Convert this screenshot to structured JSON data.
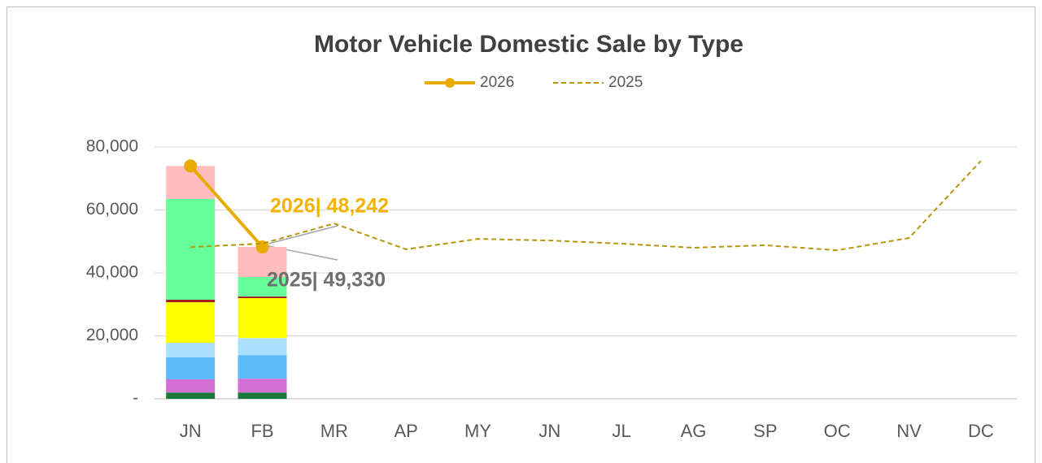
{
  "chart_data": {
    "type": "bar",
    "title": "Motor Vehicle Domestic Sale by Type",
    "categories": [
      "JN",
      "FB",
      "MR",
      "AP",
      "MY",
      "JN",
      "JL",
      "AG",
      "SP",
      "OC",
      "NV",
      "DC"
    ],
    "stack_series": [
      {
        "color": "#1a7a3c",
        "values": [
          2000,
          2000,
          null,
          null,
          null,
          null,
          null,
          null,
          null,
          null,
          null,
          null
        ]
      },
      {
        "color": "#d46fd4",
        "values": [
          4200,
          4400,
          null,
          null,
          null,
          null,
          null,
          null,
          null,
          null,
          null,
          null
        ]
      },
      {
        "color": "#5cbcf7",
        "values": [
          7000,
          7500,
          null,
          null,
          null,
          null,
          null,
          null,
          null,
          null,
          null,
          null
        ]
      },
      {
        "color": "#acdffb",
        "values": [
          4600,
          5400,
          null,
          null,
          null,
          null,
          null,
          null,
          null,
          null,
          null,
          null
        ]
      },
      {
        "color": "#ffff00",
        "values": [
          12900,
          12700,
          null,
          null,
          null,
          null,
          null,
          null,
          null,
          null,
          null,
          null
        ]
      },
      {
        "color": "#a01e1e",
        "values": [
          800,
          500,
          null,
          null,
          null,
          null,
          null,
          null,
          null,
          null,
          null,
          null
        ]
      },
      {
        "color": "#66ff99",
        "values": [
          32000,
          6200,
          null,
          null,
          null,
          null,
          null,
          null,
          null,
          null,
          null,
          null
        ]
      },
      {
        "color": "#ffbdbd",
        "values": [
          10500,
          9542,
          null,
          null,
          null,
          null,
          null,
          null,
          null,
          null,
          null,
          null
        ]
      }
    ],
    "series": [
      {
        "name": "2026",
        "color": "#e8ab00",
        "style": "solid",
        "marker": true,
        "values": [
          74000,
          48242,
          null,
          null,
          null,
          null,
          null,
          null,
          null,
          null,
          null,
          null
        ]
      },
      {
        "name": "2025",
        "color": "#b8960c",
        "style": "dashed",
        "marker": false,
        "values": [
          48200,
          49330,
          55700,
          47500,
          50800,
          50300,
          49300,
          48000,
          48800,
          47200,
          51100,
          75600
        ]
      }
    ],
    "annotations": [
      {
        "text": "2026| 48,242",
        "color": "#f2b400"
      },
      {
        "text": "2025| 49,330",
        "color": "#6f6f6f"
      }
    ],
    "ylim": [
      0,
      80000
    ],
    "yticks": [
      {
        "value": 0,
        "label": "-"
      },
      {
        "value": 20000,
        "label": "20,000"
      },
      {
        "value": 40000,
        "label": "40,000"
      },
      {
        "value": 60000,
        "label": "60,000"
      },
      {
        "value": 80000,
        "label": "80,000"
      }
    ],
    "grid": true
  }
}
